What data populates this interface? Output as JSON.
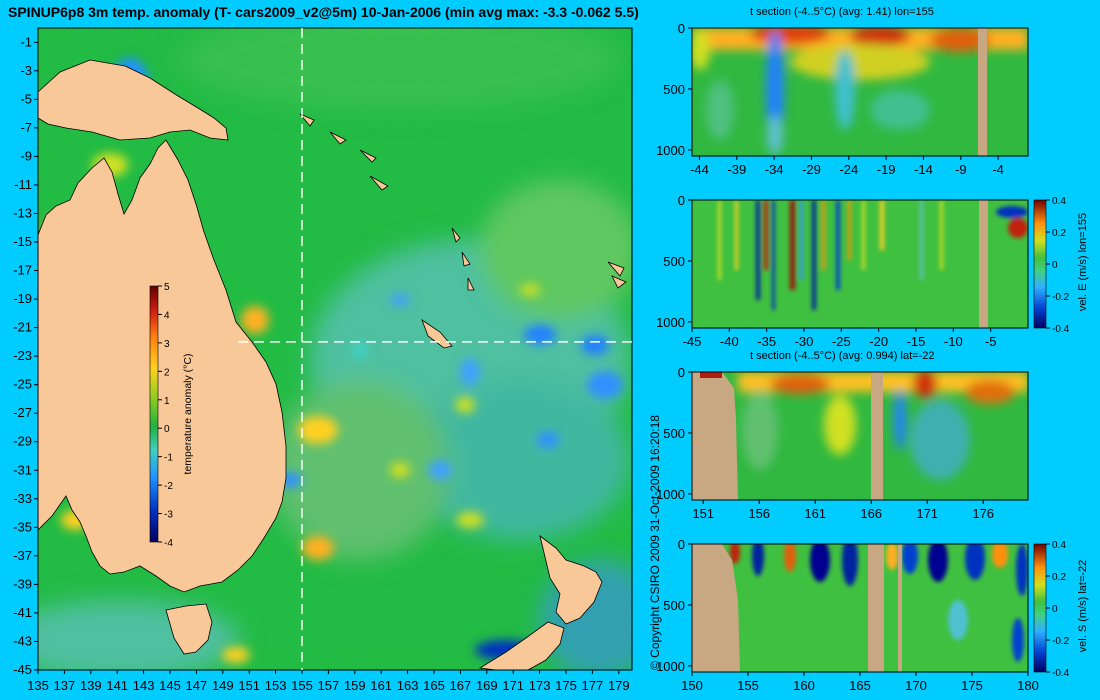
{
  "page_title": "SPINUP6p8 3m temp. anomaly (T- cars2009_v2@5m) 10-Jan-2006 (min avg max: -3.3 -0.062 5.5)",
  "copyright": "© Copyright CSIRO 2009   31-Oct-2009 16:20:18",
  "colors": {
    "background": "#00ccff",
    "land": "#f8c898",
    "section_land": "#c8a882",
    "ocean_base": "#22bb44"
  },
  "chart_data": [
    {
      "type": "heatmap",
      "panel": "map",
      "title": "",
      "xlabel": "",
      "ylabel": "",
      "x_ticks": [
        "135",
        "137",
        "139",
        "141",
        "143",
        "145",
        "147",
        "149",
        "151",
        "153",
        "155",
        "157",
        "159",
        "161",
        "163",
        "165",
        "167",
        "169",
        "171",
        "173",
        "175",
        "177",
        "179"
      ],
      "y_ticks": [
        "-1",
        "-3",
        "-5",
        "-7",
        "-9",
        "-11",
        "-13",
        "-15",
        "-17",
        "-19",
        "-21",
        "-23",
        "-25",
        "-27",
        "-29",
        "-31",
        "-33",
        "-35",
        "-37",
        "-39",
        "-41",
        "-43",
        "-45"
      ],
      "xlim": [
        135,
        180
      ],
      "ylim": [
        -45,
        0
      ],
      "guide_lines": {
        "lon": 155,
        "lat": -22
      },
      "colorbar": {
        "label": "temperature anomaly (°C)",
        "ticks": [
          "5",
          "4",
          "3",
          "2",
          "1",
          "0",
          "-1",
          "-2",
          "-3",
          "-4"
        ],
        "range": [
          -4,
          5
        ]
      }
    },
    {
      "type": "heatmap",
      "panel": "section-1",
      "title": "t section (-4..5°C) (avg: 1.41) lon=155",
      "x_ticks": [
        "-44",
        "-39",
        "-34",
        "-29",
        "-24",
        "-19",
        "-14",
        "-9",
        "-4"
      ],
      "y_ticks": [
        "0",
        "500",
        "1000"
      ],
      "xlim": [
        -45,
        0
      ],
      "ylim": [
        1050,
        0
      ]
    },
    {
      "type": "heatmap",
      "panel": "section-2",
      "title": "",
      "x_ticks": [
        "-45",
        "-40",
        "-35",
        "-30",
        "-25",
        "-20",
        "-15",
        "-10",
        "-5"
      ],
      "y_ticks": [
        "0",
        "500",
        "1000"
      ],
      "xlim": [
        -45,
        0
      ],
      "ylim": [
        1050,
        0
      ],
      "colorbar": {
        "label": "vel. E (m/s) lon=155",
        "ticks": [
          "0.4",
          "0.2",
          "0",
          "-0.2",
          "-0.4"
        ],
        "range": [
          -0.4,
          0.4
        ]
      }
    },
    {
      "type": "heatmap",
      "panel": "section-3",
      "title": "t section (-4..5°C) (avg: 0.994) lat=-22",
      "x_ticks": [
        "151",
        "156",
        "161",
        "166",
        "171",
        "176"
      ],
      "y_ticks": [
        "0",
        "500",
        "1000"
      ],
      "xlim": [
        150,
        180
      ],
      "ylim": [
        1050,
        0
      ]
    },
    {
      "type": "heatmap",
      "panel": "section-4",
      "title": "",
      "x_ticks": [
        "150",
        "155",
        "160",
        "165",
        "170",
        "175",
        "180"
      ],
      "y_ticks": [
        "0",
        "500",
        "1000"
      ],
      "xlim": [
        150,
        180
      ],
      "ylim": [
        1050,
        0
      ],
      "colorbar": {
        "label": "vel. S (m/s) lat=-22",
        "ticks": [
          "0.4",
          "0.2",
          "0",
          "-0.2",
          "-0.4"
        ],
        "range": [
          -0.4,
          0.4
        ]
      }
    }
  ]
}
